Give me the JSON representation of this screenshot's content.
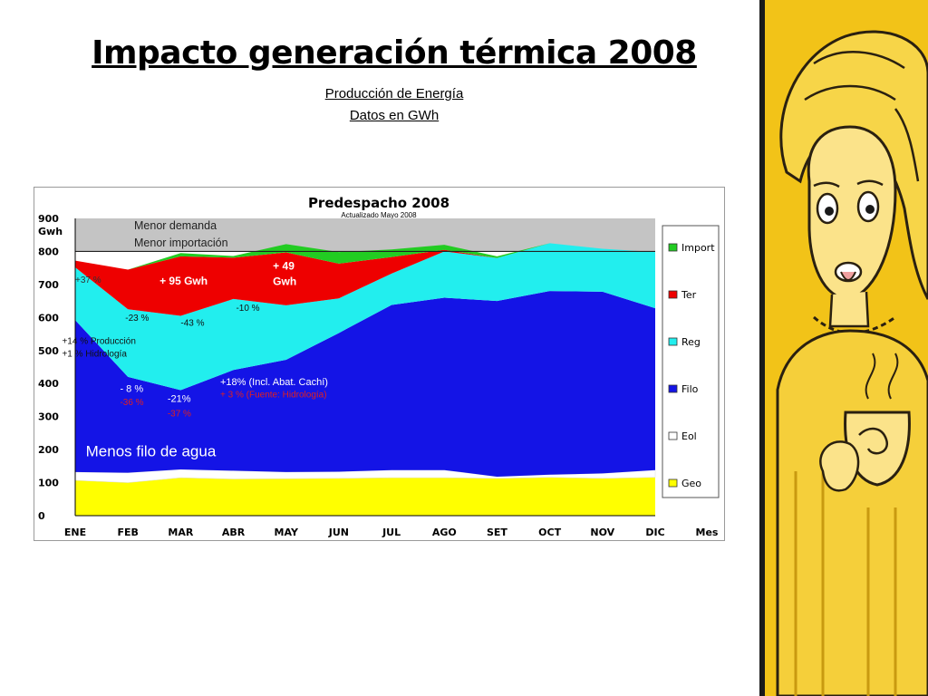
{
  "slide": {
    "title": "Impacto generación térmica 2008",
    "subtitle_1": "Producción de Energía",
    "subtitle_2": "Datos en GWh"
  },
  "colors": {
    "geo": "#ffff00",
    "eol": "#ffffff",
    "filo": "#1414e6",
    "reg": "#22eeee",
    "ter": "#ee0000",
    "import": "#22cc22",
    "demand_band": "#c4c4c4",
    "annotation_red": "#e02020",
    "annotation_blue": "#1a1aff",
    "illustration_yellow": "#f2c318"
  },
  "chart_data": {
    "type": "area",
    "stacked": true,
    "title": "Predespacho 2008",
    "subtitle": "Actualizado Mayo 2008",
    "ylabel": "Gwh",
    "xlabel": "Mes",
    "ylim": [
      0,
      900
    ],
    "yticks": [
      0,
      100,
      200,
      300,
      400,
      500,
      600,
      700,
      800,
      900
    ],
    "categories": [
      "ENE",
      "FEB",
      "MAR",
      "ABR",
      "MAY",
      "JUN",
      "JUL",
      "AGO",
      "SET",
      "OCT",
      "NOV",
      "DIC"
    ],
    "legend_position": "right",
    "series": [
      {
        "name": "Geo",
        "key": "geo",
        "values": [
          107,
          100,
          115,
          111,
          112,
          113,
          115,
          115,
          113,
          116,
          113,
          116
        ]
      },
      {
        "name": "Eol",
        "key": "eol",
        "values": [
          25,
          30,
          25,
          25,
          20,
          20,
          23,
          23,
          5,
          8,
          15,
          22
        ]
      },
      {
        "name": "Filo",
        "key": "filo",
        "values": [
          460,
          290,
          240,
          305,
          340,
          420,
          500,
          522,
          532,
          556,
          550,
          490
        ]
      },
      {
        "name": "Reg",
        "key": "reg",
        "values": [
          160,
          205,
          225,
          215,
          165,
          105,
          95,
          140,
          130,
          145,
          130,
          170
        ]
      },
      {
        "name": "Ter",
        "key": "ter",
        "values": [
          20,
          120,
          180,
          125,
          160,
          105,
          50,
          5,
          0,
          0,
          0,
          0
        ]
      },
      {
        "name": "Import",
        "key": "import",
        "values": [
          0,
          0,
          10,
          5,
          25,
          35,
          23,
          15,
          5,
          0,
          0,
          0
        ]
      }
    ],
    "reference_line": {
      "value": 800,
      "label_1": "Menor demanda",
      "label_2": "Menor importación"
    },
    "annotations": [
      {
        "text": "+37 %",
        "month": 0,
        "y": 705,
        "color": "#333333",
        "size": 10
      },
      {
        "text": "+ 95 Gwh",
        "month": 1.6,
        "y": 700,
        "color": "#ffffff",
        "size": 12,
        "bold": true
      },
      {
        "text": "+ 49",
        "month": 3.75,
        "y": 745,
        "color": "#ffffff",
        "size": 12,
        "bold": true
      },
      {
        "text": "Gwh",
        "month": 3.75,
        "y": 698,
        "color": "#ffffff",
        "size": 12,
        "bold": true
      },
      {
        "text": "-23 %",
        "month": 0.95,
        "y": 590,
        "color": "#111111",
        "size": 10
      },
      {
        "text": "-43 %",
        "month": 2.0,
        "y": 575,
        "color": "#111111",
        "size": 10
      },
      {
        "text": "-10 %",
        "month": 3.05,
        "y": 620,
        "color": "#111111",
        "size": 10
      },
      {
        "text": "+14 % Producción",
        "month": -0.25,
        "y": 520,
        "color": "#111111",
        "size": 10
      },
      {
        "text": "+1   % Hidrología",
        "month": -0.25,
        "y": 482,
        "color": "#111111",
        "size": 10
      },
      {
        "text": "-  8 %",
        "month": 0.85,
        "y": 375,
        "color": "#ffffff",
        "size": 11
      },
      {
        "text": "-36 %",
        "month": 0.85,
        "y": 335,
        "color": "#e02020",
        "size": 10
      },
      {
        "text": "-21%",
        "month": 1.75,
        "y": 345,
        "color": "#ffffff",
        "size": 11
      },
      {
        "text": "-37 %",
        "month": 1.75,
        "y": 300,
        "color": "#e02020",
        "size": 10
      },
      {
        "text": "+18% (Incl. Abat. Cachí)",
        "month": 2.75,
        "y": 395,
        "color": "#ffffff",
        "size": 11
      },
      {
        "text": "+  3 % (Fuente: Hidrología)",
        "month": 2.75,
        "y": 358,
        "color": "#e02020",
        "size": 10
      },
      {
        "text": "Menos filo de agua",
        "month": 0.2,
        "y": 180,
        "color": "#ffffff",
        "size": 17
      }
    ]
  }
}
